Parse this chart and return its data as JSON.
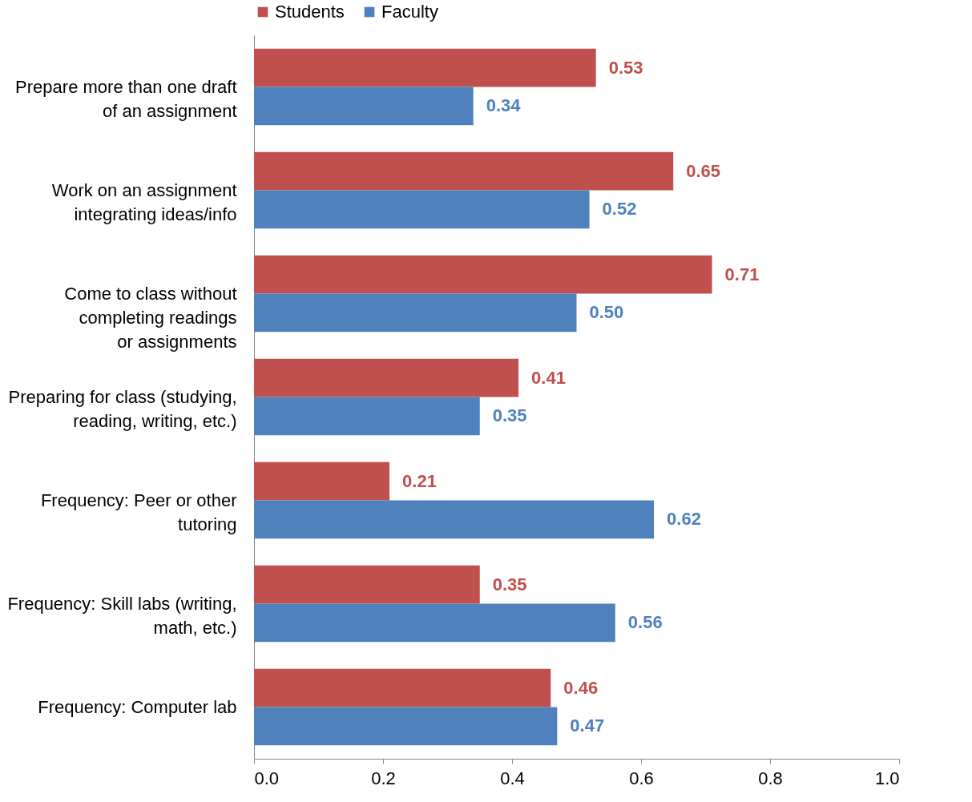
{
  "chart_data": {
    "type": "bar",
    "orientation": "horizontal",
    "categories": [
      "Prepare more than one draft\nof an assignment",
      "Work on an assignment\nintegrating ideas/info",
      "Come to class without\ncompleting readings\nor assignments",
      "Preparing for class (studying,\nreading, writing, etc.)",
      "Frequency: Peer or other\ntutoring",
      "Frequency: Skill labs (writing,\nmath, etc.)",
      "Frequency: Computer lab"
    ],
    "series": [
      {
        "name": "Students",
        "color": "#c0504d",
        "values": [
          0.53,
          0.65,
          0.71,
          0.41,
          0.21,
          0.35,
          0.46
        ],
        "value_labels": [
          "0.53",
          "0.65",
          "0.71",
          "0.41",
          "0.21",
          "0.35",
          "0.46"
        ]
      },
      {
        "name": "Faculty",
        "color": "#4f81bd",
        "values": [
          0.34,
          0.52,
          0.5,
          0.35,
          0.62,
          0.56,
          0.47
        ],
        "value_labels": [
          "0.34",
          "0.52",
          "0.50",
          "0.35",
          "0.62",
          "0.56",
          "0.47"
        ]
      }
    ],
    "xlim": [
      0,
      1
    ],
    "xticks": [
      {
        "value": 0,
        "label": "0.0"
      },
      {
        "value": 0.2,
        "label": "0.2"
      },
      {
        "value": 0.4,
        "label": "0.4"
      },
      {
        "value": 0.6,
        "label": "0.6"
      },
      {
        "value": 0.8,
        "label": "0.8"
      },
      {
        "value": 1,
        "label": "1.0"
      }
    ],
    "grid": false,
    "legend": "top"
  }
}
